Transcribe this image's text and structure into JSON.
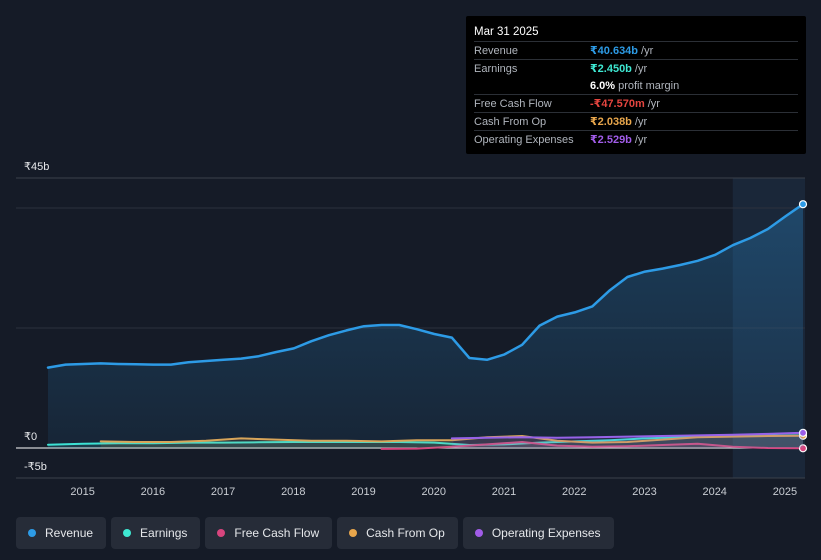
{
  "colors": {
    "revenue": "#2d9be6",
    "earnings": "#3ee8d2",
    "free_cash_flow": "#d8457e",
    "cash_from_op": "#e8a64c",
    "operating_expenses": "#a15ce8"
  },
  "tooltip": {
    "date": "Mar 31 2025",
    "rows": [
      {
        "label": "Revenue",
        "value": "₹40.634b",
        "unit": "/yr",
        "color": "#2d9be6"
      },
      {
        "label": "Earnings",
        "value": "₹2.450b",
        "unit": "/yr",
        "color": "#3ee8d2"
      },
      {
        "label": "",
        "value": "6.0%",
        "unit": "profit margin",
        "color": "#ffffff"
      },
      {
        "label": "Free Cash Flow",
        "value": "-₹47.570m",
        "unit": "/yr",
        "color": "#e5453f"
      },
      {
        "label": "Cash From Op",
        "value": "₹2.038b",
        "unit": "/yr",
        "color": "#e8a64c"
      },
      {
        "label": "Operating Expenses",
        "value": "₹2.529b",
        "unit": "/yr",
        "color": "#a15ce8"
      }
    ]
  },
  "legend": [
    {
      "label": "Revenue",
      "color": "#2d9be6"
    },
    {
      "label": "Earnings",
      "color": "#3ee8d2"
    },
    {
      "label": "Free Cash Flow",
      "color": "#d8457e"
    },
    {
      "label": "Cash From Op",
      "color": "#e8a64c"
    },
    {
      "label": "Operating Expenses",
      "color": "#a15ce8"
    }
  ],
  "chart_data": {
    "type": "line",
    "title": "",
    "xlabel": "",
    "ylabel": "",
    "y_tick_labels": [
      "₹45b",
      "₹0",
      "-₹5b"
    ],
    "ylim": [
      -5,
      45
    ],
    "xlim": [
      2014.5,
      2025.25
    ],
    "x_ticks": [
      2015,
      2016,
      2017,
      2018,
      2019,
      2020,
      2021,
      2022,
      2023,
      2024,
      2025
    ],
    "x_tick_labels": [
      "2015",
      "2016",
      "2017",
      "2018",
      "2019",
      "2020",
      "2021",
      "2022",
      "2023",
      "2024",
      "2025"
    ],
    "highlight_range": [
      2024.25,
      2025.25
    ],
    "series": [
      {
        "name": "Revenue",
        "color": "#2d9be6",
        "fill": true,
        "points": [
          [
            2014.5,
            13.4
          ],
          [
            2014.75,
            13.9
          ],
          [
            2015.0,
            14.0
          ],
          [
            2015.25,
            14.1
          ],
          [
            2015.5,
            14.0
          ],
          [
            2015.75,
            13.95
          ],
          [
            2016.0,
            13.9
          ],
          [
            2016.25,
            13.9
          ],
          [
            2016.5,
            14.3
          ],
          [
            2016.75,
            14.5
          ],
          [
            2017.0,
            14.7
          ],
          [
            2017.25,
            14.9
          ],
          [
            2017.5,
            15.3
          ],
          [
            2017.75,
            16.0
          ],
          [
            2018.0,
            16.6
          ],
          [
            2018.25,
            17.8
          ],
          [
            2018.5,
            18.8
          ],
          [
            2018.75,
            19.6
          ],
          [
            2019.0,
            20.3
          ],
          [
            2019.25,
            20.5
          ],
          [
            2019.5,
            20.5
          ],
          [
            2019.75,
            19.8
          ],
          [
            2020.0,
            19.0
          ],
          [
            2020.25,
            18.4
          ],
          [
            2020.5,
            15.0
          ],
          [
            2020.75,
            14.7
          ],
          [
            2021.0,
            15.6
          ],
          [
            2021.25,
            17.2
          ],
          [
            2021.5,
            20.4
          ],
          [
            2021.75,
            21.9
          ],
          [
            2022.0,
            22.6
          ],
          [
            2022.25,
            23.6
          ],
          [
            2022.5,
            26.3
          ],
          [
            2022.75,
            28.5
          ],
          [
            2023.0,
            29.4
          ],
          [
            2023.25,
            29.9
          ],
          [
            2023.5,
            30.5
          ],
          [
            2023.75,
            31.2
          ],
          [
            2024.0,
            32.2
          ],
          [
            2024.25,
            33.8
          ],
          [
            2024.5,
            35.0
          ],
          [
            2024.75,
            36.5
          ],
          [
            2025.0,
            38.6
          ],
          [
            2025.25,
            40.634
          ]
        ]
      },
      {
        "name": "Earnings",
        "color": "#3ee8d2",
        "fill": false,
        "points": [
          [
            2014.5,
            0.55
          ],
          [
            2015.0,
            0.7
          ],
          [
            2015.5,
            0.8
          ],
          [
            2016.0,
            0.8
          ],
          [
            2016.5,
            0.9
          ],
          [
            2017.0,
            0.9
          ],
          [
            2017.5,
            0.95
          ],
          [
            2018.0,
            1.0
          ],
          [
            2018.5,
            1.0
          ],
          [
            2019.0,
            1.0
          ],
          [
            2019.5,
            1.0
          ],
          [
            2020.0,
            0.9
          ],
          [
            2020.5,
            0.5
          ],
          [
            2021.0,
            0.6
          ],
          [
            2021.5,
            0.9
          ],
          [
            2022.0,
            1.1
          ],
          [
            2022.5,
            1.3
          ],
          [
            2023.0,
            1.6
          ],
          [
            2023.5,
            1.8
          ],
          [
            2024.0,
            2.0
          ],
          [
            2024.5,
            2.2
          ],
          [
            2025.0,
            2.4
          ],
          [
            2025.25,
            2.45
          ]
        ]
      },
      {
        "name": "Free Cash Flow",
        "color": "#d8457e",
        "fill": false,
        "points": [
          [
            2019.25,
            -0.15
          ],
          [
            2019.75,
            -0.1
          ],
          [
            2020.25,
            0.2
          ],
          [
            2020.75,
            0.6
          ],
          [
            2021.25,
            1.0
          ],
          [
            2021.75,
            0.4
          ],
          [
            2022.25,
            0.2
          ],
          [
            2022.75,
            0.3
          ],
          [
            2023.25,
            0.5
          ],
          [
            2023.75,
            0.7
          ],
          [
            2024.25,
            0.2
          ],
          [
            2024.75,
            0.0
          ],
          [
            2025.25,
            -0.048
          ]
        ]
      },
      {
        "name": "Cash From Op",
        "color": "#e8a64c",
        "fill": false,
        "points": [
          [
            2015.25,
            1.1
          ],
          [
            2015.75,
            1.0
          ],
          [
            2016.25,
            1.0
          ],
          [
            2016.75,
            1.2
          ],
          [
            2017.25,
            1.6
          ],
          [
            2017.75,
            1.4
          ],
          [
            2018.25,
            1.2
          ],
          [
            2018.75,
            1.2
          ],
          [
            2019.25,
            1.1
          ],
          [
            2019.75,
            1.3
          ],
          [
            2020.25,
            1.3
          ],
          [
            2020.75,
            1.8
          ],
          [
            2021.25,
            2.0
          ],
          [
            2021.75,
            1.2
          ],
          [
            2022.25,
            0.9
          ],
          [
            2022.75,
            1.0
          ],
          [
            2023.25,
            1.4
          ],
          [
            2023.75,
            1.8
          ],
          [
            2024.25,
            1.9
          ],
          [
            2024.75,
            2.0
          ],
          [
            2025.25,
            2.038
          ]
        ]
      },
      {
        "name": "Operating Expenses",
        "color": "#a15ce8",
        "fill": false,
        "points": [
          [
            2020.25,
            1.6
          ],
          [
            2020.75,
            1.7
          ],
          [
            2021.25,
            1.8
          ],
          [
            2021.75,
            1.7
          ],
          [
            2022.25,
            1.8
          ],
          [
            2022.75,
            1.9
          ],
          [
            2023.25,
            2.0
          ],
          [
            2023.75,
            2.1
          ],
          [
            2024.25,
            2.2
          ],
          [
            2024.75,
            2.35
          ],
          [
            2025.25,
            2.529
          ]
        ]
      }
    ]
  }
}
